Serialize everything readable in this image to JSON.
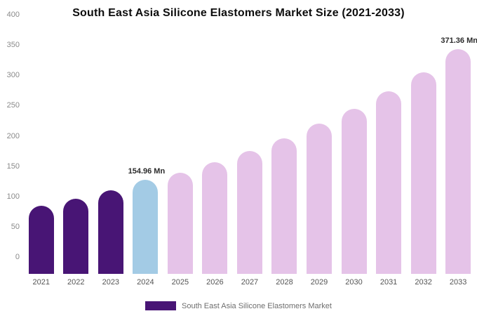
{
  "title": "South East Asia Silicone Elastomers Market Size (2021-2033)",
  "legend": {
    "label": "South East Asia Silicone Elastomers Market",
    "swatch_color": "#481575"
  },
  "colors": {
    "historical": "#481575",
    "current_year": "#a3cbe5",
    "forecast": "#e5c3e8"
  },
  "chart_data": {
    "type": "bar",
    "title": "South East Asia Silicone Elastomers Market Size (2021-2033)",
    "xlabel": "",
    "ylabel": "",
    "ylim": [
      0,
      400
    ],
    "yticks": [
      0,
      50,
      100,
      150,
      200,
      250,
      300,
      350,
      400
    ],
    "grid": false,
    "legend_position": "bottom",
    "categories": [
      "2021",
      "2022",
      "2023",
      "2024",
      "2025",
      "2026",
      "2027",
      "2028",
      "2029",
      "2030",
      "2031",
      "2032",
      "2033"
    ],
    "values": [
      112,
      124,
      138,
      154.96,
      167,
      184,
      203,
      224,
      248,
      273,
      301,
      333,
      371.36
    ],
    "bar_colors": [
      "#481575",
      "#481575",
      "#481575",
      "#a3cbe5",
      "#e5c3e8",
      "#e5c3e8",
      "#e5c3e8",
      "#e5c3e8",
      "#e5c3e8",
      "#e5c3e8",
      "#e5c3e8",
      "#e5c3e8",
      "#e5c3e8"
    ],
    "annotations": [
      {
        "category": "2024",
        "text": "154.96 Mn"
      },
      {
        "category": "2033",
        "text": "371.36 Mn"
      }
    ]
  }
}
